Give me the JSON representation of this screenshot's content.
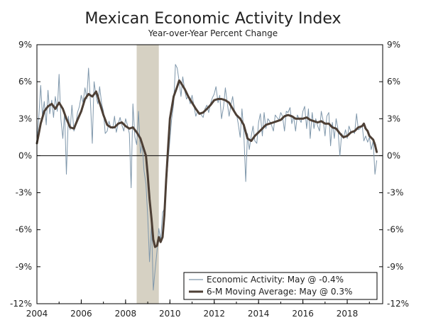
{
  "chart_data": {
    "type": "line",
    "title": "Mexican Economic Activity Index",
    "subtitle": "Year-over-Year Percent Change",
    "ylim": [
      -12,
      9
    ],
    "yticks": [
      9,
      6,
      3,
      0,
      -3,
      -6,
      -9,
      -12
    ],
    "ytick_labels": [
      "9%",
      "6%",
      "3%",
      "0%",
      "-3%",
      "-6%",
      "-9%",
      "-12%"
    ],
    "xlim": [
      2004.0,
      2019.6
    ],
    "xticks": [
      2004,
      2006,
      2008,
      2010,
      2012,
      2014,
      2016,
      2018
    ],
    "xtick_labels": [
      "2004",
      "2006",
      "2008",
      "2010",
      "2012",
      "2014",
      "2016",
      "2018"
    ],
    "recession": {
      "start": 2008.5,
      "end": 2009.5
    },
    "colors": {
      "monthly": "#7f97ab",
      "moving_average": "#4d3f35",
      "recession": "#d6d1c3",
      "axis": "#000000"
    },
    "series": [
      {
        "name": "Economic Activity: May @ -0.4%",
        "style": "thin",
        "points": [
          [
            2004.0,
            1.2
          ],
          [
            2004.08,
            3.0
          ],
          [
            2004.17,
            5.7
          ],
          [
            2004.25,
            3.2
          ],
          [
            2004.33,
            4.4
          ],
          [
            2004.42,
            2.5
          ],
          [
            2004.5,
            5.3
          ],
          [
            2004.58,
            3.4
          ],
          [
            2004.67,
            4.5
          ],
          [
            2004.75,
            3.1
          ],
          [
            2004.83,
            4.8
          ],
          [
            2004.92,
            3.6
          ],
          [
            2005.0,
            6.6
          ],
          [
            2005.08,
            3.0
          ],
          [
            2005.17,
            1.4
          ],
          [
            2005.25,
            3.6
          ],
          [
            2005.33,
            -1.5
          ],
          [
            2005.42,
            3.2
          ],
          [
            2005.5,
            2.1
          ],
          [
            2005.58,
            4.1
          ],
          [
            2005.67,
            2.0
          ],
          [
            2005.75,
            2.4
          ],
          [
            2005.83,
            3.5
          ],
          [
            2005.92,
            4.0
          ],
          [
            2006.0,
            4.9
          ],
          [
            2006.08,
            4.3
          ],
          [
            2006.17,
            5.5
          ],
          [
            2006.25,
            4.6
          ],
          [
            2006.33,
            7.1
          ],
          [
            2006.42,
            4.2
          ],
          [
            2006.5,
            1.0
          ],
          [
            2006.58,
            6.0
          ],
          [
            2006.67,
            4.8
          ],
          [
            2006.75,
            4.2
          ],
          [
            2006.83,
            5.6
          ],
          [
            2006.92,
            4.2
          ],
          [
            2007.0,
            3.6
          ],
          [
            2007.08,
            1.8
          ],
          [
            2007.17,
            2.0
          ],
          [
            2007.25,
            2.8
          ],
          [
            2007.33,
            2.3
          ],
          [
            2007.42,
            2.2
          ],
          [
            2007.5,
            3.2
          ],
          [
            2007.58,
            1.9
          ],
          [
            2007.67,
            2.6
          ],
          [
            2007.75,
            3.1
          ],
          [
            2007.83,
            2.5
          ],
          [
            2007.92,
            2.0
          ],
          [
            2008.0,
            3.0
          ],
          [
            2008.08,
            2.5
          ],
          [
            2008.17,
            1.8
          ],
          [
            2008.25,
            -2.6
          ],
          [
            2008.33,
            4.2
          ],
          [
            2008.42,
            1.5
          ],
          [
            2008.5,
            0.9
          ],
          [
            2008.58,
            3.6
          ],
          [
            2008.67,
            0.2
          ],
          [
            2008.75,
            1.0
          ],
          [
            2008.83,
            -1.2
          ],
          [
            2008.92,
            -2.3
          ],
          [
            2009.0,
            -5.0
          ],
          [
            2009.08,
            -8.6
          ],
          [
            2009.17,
            -5.5
          ],
          [
            2009.25,
            -10.9
          ],
          [
            2009.33,
            -9.3
          ],
          [
            2009.42,
            -7.7
          ],
          [
            2009.5,
            -5.9
          ],
          [
            2009.58,
            -6.9
          ],
          [
            2009.67,
            -4.6
          ],
          [
            2009.75,
            -4.3
          ],
          [
            2009.83,
            -2.6
          ],
          [
            2009.92,
            -0.4
          ],
          [
            2010.0,
            1.3
          ],
          [
            2010.08,
            3.0
          ],
          [
            2010.17,
            4.2
          ],
          [
            2010.25,
            7.4
          ],
          [
            2010.33,
            7.1
          ],
          [
            2010.42,
            6.0
          ],
          [
            2010.5,
            4.8
          ],
          [
            2010.58,
            6.4
          ],
          [
            2010.67,
            5.3
          ],
          [
            2010.75,
            4.6
          ],
          [
            2010.83,
            4.8
          ],
          [
            2010.92,
            4.2
          ],
          [
            2011.0,
            4.9
          ],
          [
            2011.08,
            4.1
          ],
          [
            2011.17,
            3.2
          ],
          [
            2011.25,
            3.6
          ],
          [
            2011.33,
            3.5
          ],
          [
            2011.42,
            3.3
          ],
          [
            2011.5,
            3.1
          ],
          [
            2011.58,
            3.8
          ],
          [
            2011.67,
            4.1
          ],
          [
            2011.75,
            3.5
          ],
          [
            2011.83,
            4.2
          ],
          [
            2011.92,
            4.7
          ],
          [
            2012.0,
            5.0
          ],
          [
            2012.08,
            5.6
          ],
          [
            2012.17,
            4.3
          ],
          [
            2012.25,
            4.9
          ],
          [
            2012.33,
            3.0
          ],
          [
            2012.42,
            4.0
          ],
          [
            2012.5,
            5.5
          ],
          [
            2012.58,
            4.4
          ],
          [
            2012.67,
            3.2
          ],
          [
            2012.75,
            4.1
          ],
          [
            2012.83,
            4.8
          ],
          [
            2012.92,
            3.5
          ],
          [
            2013.0,
            3.4
          ],
          [
            2013.08,
            2.6
          ],
          [
            2013.17,
            1.5
          ],
          [
            2013.25,
            3.8
          ],
          [
            2013.33,
            2.0
          ],
          [
            2013.42,
            -2.1
          ],
          [
            2013.5,
            1.8
          ],
          [
            2013.58,
            0.5
          ],
          [
            2013.67,
            1.6
          ],
          [
            2013.75,
            2.4
          ],
          [
            2013.83,
            1.2
          ],
          [
            2013.92,
            1.0
          ],
          [
            2014.0,
            2.7
          ],
          [
            2014.08,
            3.4
          ],
          [
            2014.17,
            1.6
          ],
          [
            2014.25,
            3.5
          ],
          [
            2014.33,
            2.2
          ],
          [
            2014.42,
            3.0
          ],
          [
            2014.5,
            2.8
          ],
          [
            2014.58,
            2.5
          ],
          [
            2014.67,
            2.0
          ],
          [
            2014.75,
            3.3
          ],
          [
            2014.83,
            3.1
          ],
          [
            2014.92,
            2.9
          ],
          [
            2015.0,
            3.5
          ],
          [
            2015.08,
            3.2
          ],
          [
            2015.17,
            2.0
          ],
          [
            2015.25,
            3.6
          ],
          [
            2015.33,
            3.5
          ],
          [
            2015.42,
            3.9
          ],
          [
            2015.5,
            2.6
          ],
          [
            2015.58,
            3.2
          ],
          [
            2015.67,
            2.0
          ],
          [
            2015.75,
            3.3
          ],
          [
            2015.83,
            3.0
          ],
          [
            2015.92,
            2.7
          ],
          [
            2016.0,
            3.6
          ],
          [
            2016.08,
            4.0
          ],
          [
            2016.17,
            2.2
          ],
          [
            2016.25,
            3.8
          ],
          [
            2016.33,
            1.4
          ],
          [
            2016.42,
            3.5
          ],
          [
            2016.5,
            2.2
          ],
          [
            2016.58,
            3.0
          ],
          [
            2016.67,
            2.4
          ],
          [
            2016.75,
            2.0
          ],
          [
            2016.83,
            3.6
          ],
          [
            2016.92,
            2.8
          ],
          [
            2017.0,
            1.6
          ],
          [
            2017.08,
            3.2
          ],
          [
            2017.17,
            3.5
          ],
          [
            2017.25,
            0.8
          ],
          [
            2017.33,
            2.7
          ],
          [
            2017.42,
            1.4
          ],
          [
            2017.5,
            3.0
          ],
          [
            2017.58,
            2.2
          ],
          [
            2017.67,
            0.0
          ],
          [
            2017.75,
            1.8
          ],
          [
            2017.83,
            1.4
          ],
          [
            2017.92,
            2.1
          ],
          [
            2018.0,
            1.4
          ],
          [
            2018.08,
            2.4
          ],
          [
            2018.17,
            1.9
          ],
          [
            2018.25,
            2.0
          ],
          [
            2018.33,
            1.8
          ],
          [
            2018.42,
            3.4
          ],
          [
            2018.5,
            2.1
          ],
          [
            2018.58,
            2.2
          ],
          [
            2018.67,
            2.5
          ],
          [
            2018.75,
            1.2
          ],
          [
            2018.83,
            1.6
          ],
          [
            2018.92,
            1.1
          ],
          [
            2019.0,
            1.5
          ],
          [
            2019.08,
            0.5
          ],
          [
            2019.17,
            1.2
          ],
          [
            2019.25,
            -1.5
          ],
          [
            2019.33,
            -0.4
          ]
        ]
      },
      {
        "name": "6-M Moving Average: May @ 0.3%",
        "style": "thick",
        "points": [
          [
            2004.0,
            1.0
          ],
          [
            2004.17,
            2.6
          ],
          [
            2004.33,
            3.6
          ],
          [
            2004.5,
            4.0
          ],
          [
            2004.67,
            4.2
          ],
          [
            2004.83,
            3.8
          ],
          [
            2005.0,
            4.3
          ],
          [
            2005.17,
            3.8
          ],
          [
            2005.33,
            3.0
          ],
          [
            2005.5,
            2.3
          ],
          [
            2005.67,
            2.2
          ],
          [
            2005.83,
            2.9
          ],
          [
            2006.0,
            3.6
          ],
          [
            2006.17,
            4.6
          ],
          [
            2006.33,
            5.0
          ],
          [
            2006.5,
            4.8
          ],
          [
            2006.67,
            5.2
          ],
          [
            2006.75,
            4.8
          ],
          [
            2006.83,
            4.3
          ],
          [
            2007.0,
            3.3
          ],
          [
            2007.17,
            2.5
          ],
          [
            2007.33,
            2.3
          ],
          [
            2007.5,
            2.3
          ],
          [
            2007.67,
            2.6
          ],
          [
            2007.83,
            2.7
          ],
          [
            2008.0,
            2.4
          ],
          [
            2008.17,
            2.2
          ],
          [
            2008.33,
            2.3
          ],
          [
            2008.5,
            1.9
          ],
          [
            2008.67,
            1.4
          ],
          [
            2008.83,
            0.5
          ],
          [
            2008.92,
            0.0
          ],
          [
            2009.0,
            -1.6
          ],
          [
            2009.08,
            -3.5
          ],
          [
            2009.17,
            -5.1
          ],
          [
            2009.25,
            -6.8
          ],
          [
            2009.33,
            -7.4
          ],
          [
            2009.42,
            -7.3
          ],
          [
            2009.5,
            -6.6
          ],
          [
            2009.58,
            -7.0
          ],
          [
            2009.67,
            -6.6
          ],
          [
            2009.75,
            -4.8
          ],
          [
            2009.83,
            -2.0
          ],
          [
            2009.92,
            0.7
          ],
          [
            2010.0,
            3.0
          ],
          [
            2010.17,
            4.8
          ],
          [
            2010.33,
            5.6
          ],
          [
            2010.42,
            6.1
          ],
          [
            2010.5,
            5.9
          ],
          [
            2010.67,
            5.4
          ],
          [
            2010.83,
            4.8
          ],
          [
            2011.0,
            4.3
          ],
          [
            2011.17,
            3.8
          ],
          [
            2011.33,
            3.4
          ],
          [
            2011.5,
            3.5
          ],
          [
            2011.67,
            3.8
          ],
          [
            2011.83,
            4.1
          ],
          [
            2012.0,
            4.5
          ],
          [
            2012.17,
            4.6
          ],
          [
            2012.33,
            4.6
          ],
          [
            2012.5,
            4.5
          ],
          [
            2012.67,
            4.3
          ],
          [
            2012.83,
            3.8
          ],
          [
            2013.0,
            3.3
          ],
          [
            2013.17,
            3.0
          ],
          [
            2013.33,
            2.5
          ],
          [
            2013.5,
            1.4
          ],
          [
            2013.67,
            1.2
          ],
          [
            2013.83,
            1.6
          ],
          [
            2014.0,
            1.9
          ],
          [
            2014.17,
            2.2
          ],
          [
            2014.33,
            2.5
          ],
          [
            2014.5,
            2.6
          ],
          [
            2014.67,
            2.7
          ],
          [
            2014.83,
            2.8
          ],
          [
            2015.0,
            2.9
          ],
          [
            2015.17,
            3.2
          ],
          [
            2015.33,
            3.3
          ],
          [
            2015.5,
            3.2
          ],
          [
            2015.67,
            3.0
          ],
          [
            2015.83,
            3.0
          ],
          [
            2016.0,
            3.0
          ],
          [
            2016.17,
            3.1
          ],
          [
            2016.33,
            2.9
          ],
          [
            2016.5,
            2.8
          ],
          [
            2016.67,
            2.7
          ],
          [
            2016.83,
            2.8
          ],
          [
            2017.0,
            2.6
          ],
          [
            2017.17,
            2.6
          ],
          [
            2017.33,
            2.3
          ],
          [
            2017.5,
            2.2
          ],
          [
            2017.67,
            1.8
          ],
          [
            2017.83,
            1.5
          ],
          [
            2018.0,
            1.6
          ],
          [
            2018.17,
            1.9
          ],
          [
            2018.33,
            2.0
          ],
          [
            2018.5,
            2.3
          ],
          [
            2018.67,
            2.4
          ],
          [
            2018.75,
            2.6
          ],
          [
            2018.83,
            2.2
          ],
          [
            2018.92,
            2.0
          ],
          [
            2019.0,
            1.6
          ],
          [
            2019.17,
            1.3
          ],
          [
            2019.25,
            0.9
          ],
          [
            2019.33,
            0.3
          ]
        ]
      }
    ]
  }
}
